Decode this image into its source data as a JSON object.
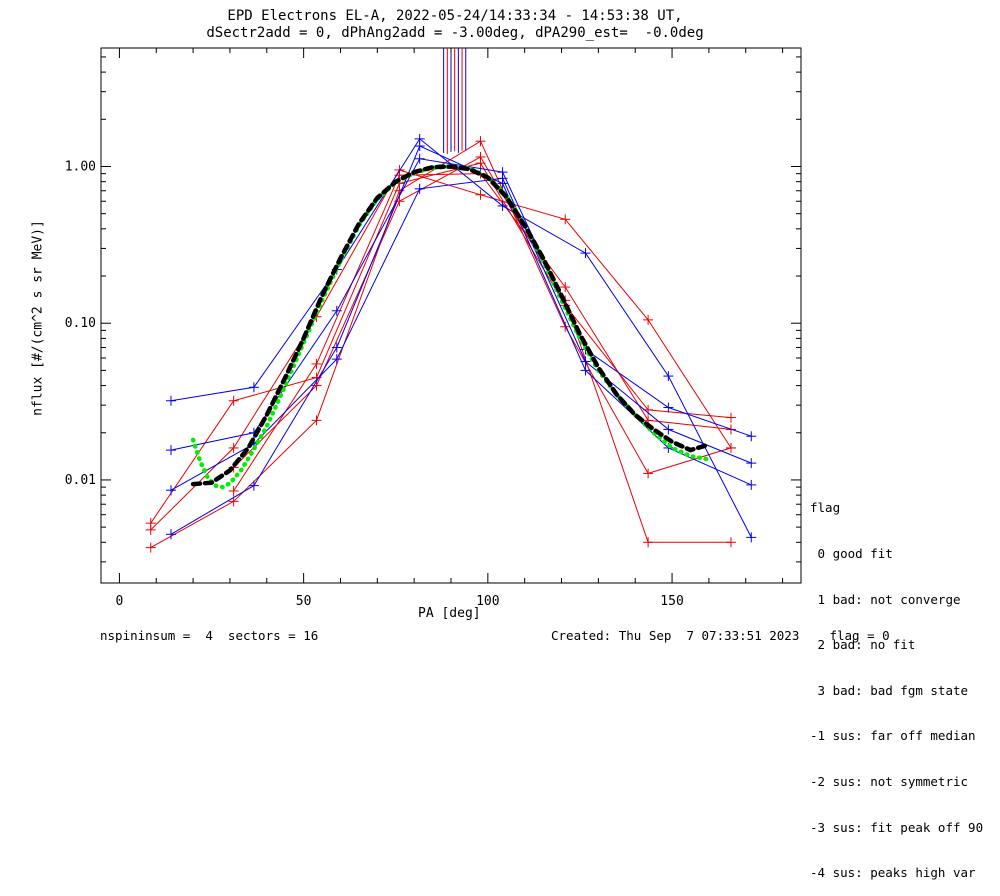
{
  "header": {
    "title_line1": "EPD Electrons EL-A, 2022-05-24/14:33:34 - 14:53:38 UT,",
    "title_line2": "dSectr2add = 0, dPhAng2add = -3.00deg, dPA290_est=  -0.0deg"
  },
  "legend": {
    "title": "flag",
    "items": [
      " 0 good fit",
      " 1 bad: not converge",
      " 2 bad: no fit",
      " 3 bad: bad fgm state",
      "-1 sus: far off median",
      "-2 sus: not symmetric",
      "-3 sus: fit peak off 90",
      "-4 sus: peaks high var"
    ]
  },
  "footer": {
    "left": "nspininsum =  4  sectors = 16",
    "right": "Created: Thu Sep  7 07:33:51 2023    flag = 0"
  },
  "chart_data": {
    "type": "line",
    "title": "EPD Electrons EL-A, 2022-05-24/14:33:34 - 14:53:38 UT,",
    "subtitle": "dSectr2add = 0, dPhAng2add = -3.00deg, dPA290_est=  -0.0deg",
    "xlabel": "PA [deg]",
    "ylabel": "nflux [#/(cm^2 s sr MeV)]",
    "xlim": [
      -5,
      185
    ],
    "ylim": [
      0.0022,
      5.7
    ],
    "yscale": "log",
    "x_ticks": [
      0,
      50,
      100,
      150
    ],
    "y_ticks": [
      0.01,
      0.1,
      1.0
    ],
    "y_tick_labels": [
      "0.01",
      "0.10",
      "1.00"
    ],
    "colors": {
      "red": "#ee0000",
      "blue": "#0000ee",
      "green": "#00ee00",
      "black": "#000000"
    },
    "series": [
      {
        "color": "red",
        "x": [
          8.5,
          31,
          53.5,
          76,
          98,
          121,
          143.5,
          166
        ],
        "y": [
          0.0053,
          0.032,
          0.045,
          0.78,
          1.05,
          0.13,
          0.028,
          0.025
        ]
      },
      {
        "color": "red",
        "x": [
          8.5,
          31,
          53.5,
          76,
          98,
          121,
          143.5,
          166
        ],
        "y": [
          0.0037,
          0.0073,
          0.024,
          0.7,
          1.45,
          0.095,
          0.011,
          0.016
        ]
      },
      {
        "color": "red",
        "x": [
          8.5,
          31,
          53.5,
          76,
          98,
          121,
          143.5,
          166
        ],
        "y": [
          0.0048,
          0.016,
          0.11,
          0.95,
          0.66,
          0.46,
          0.105,
          0.016
        ]
      },
      {
        "color": "red",
        "x": [
          31,
          53.5,
          76,
          98,
          121,
          143.5,
          166
        ],
        "y": [
          0.0085,
          0.055,
          0.88,
          0.9,
          0.17,
          0.024,
          0.021
        ]
      },
      {
        "color": "red",
        "x": [
          31,
          53.5,
          76,
          98,
          121,
          143.5,
          166
        ],
        "y": [
          0.012,
          0.04,
          0.6,
          1.15,
          0.14,
          0.004,
          0.004
        ]
      },
      {
        "color": "blue",
        "x": [
          14,
          36.5,
          59,
          81.5,
          104,
          126.5,
          149,
          171.5
        ],
        "y": [
          0.032,
          0.039,
          0.22,
          1.5,
          0.56,
          0.28,
          0.046,
          0.0043
        ]
      },
      {
        "color": "blue",
        "x": [
          14,
          36.5,
          59,
          81.5,
          104,
          126.5,
          149,
          171.5
        ],
        "y": [
          0.0155,
          0.02,
          0.12,
          1.12,
          0.92,
          0.068,
          0.029,
          0.019
        ]
      },
      {
        "color": "blue",
        "x": [
          14,
          36.5,
          59,
          81.5,
          104,
          126.5,
          149,
          171.5
        ],
        "y": [
          0.0045,
          0.0092,
          0.07,
          1.35,
          0.78,
          0.05,
          0.016,
          0.0093
        ]
      },
      {
        "color": "blue",
        "x": [
          14,
          36.5,
          59,
          81.5,
          104,
          126.5,
          149,
          171.5
        ],
        "y": [
          0.0086,
          0.017,
          0.059,
          0.72,
          0.84,
          0.057,
          0.021,
          0.0128
        ]
      }
    ],
    "fits": [
      {
        "color": "green",
        "style": "dotted",
        "x": [
          20,
          22,
          24,
          26,
          28,
          30,
          33,
          36,
          40,
          45,
          50,
          55,
          60,
          65,
          70,
          75,
          80,
          85,
          90,
          95,
          100,
          105,
          110,
          115,
          120,
          125,
          130,
          135,
          140,
          145,
          150,
          155,
          160
        ],
        "y": [
          0.018,
          0.013,
          0.0103,
          0.0092,
          0.009,
          0.0095,
          0.0115,
          0.015,
          0.022,
          0.04,
          0.075,
          0.14,
          0.25,
          0.42,
          0.62,
          0.79,
          0.91,
          0.98,
          1.0,
          0.97,
          0.86,
          0.65,
          0.42,
          0.25,
          0.14,
          0.08,
          0.05,
          0.035,
          0.026,
          0.02,
          0.016,
          0.0142,
          0.0135
        ]
      },
      {
        "color": "black",
        "style": "dashed",
        "x": [
          20,
          25,
          30,
          35,
          40,
          45,
          50,
          55,
          60,
          65,
          70,
          75,
          80,
          85,
          90,
          95,
          100,
          105,
          110,
          115,
          120,
          125,
          130,
          135,
          140,
          145,
          150,
          155,
          160
        ],
        "y": [
          0.0094,
          0.0096,
          0.0115,
          0.016,
          0.026,
          0.045,
          0.08,
          0.15,
          0.26,
          0.43,
          0.63,
          0.8,
          0.92,
          0.99,
          1.0,
          0.96,
          0.85,
          0.64,
          0.42,
          0.26,
          0.15,
          0.085,
          0.052,
          0.035,
          0.026,
          0.021,
          0.0175,
          0.0155,
          0.0168
        ]
      }
    ],
    "spikes": {
      "color": "blue_red",
      "x": [
        88,
        89,
        90,
        91,
        92,
        93,
        94
      ],
      "y_bottom": [
        1.22,
        1.2,
        1.24,
        1.25,
        1.22,
        1.26,
        1.26
      ]
    }
  }
}
